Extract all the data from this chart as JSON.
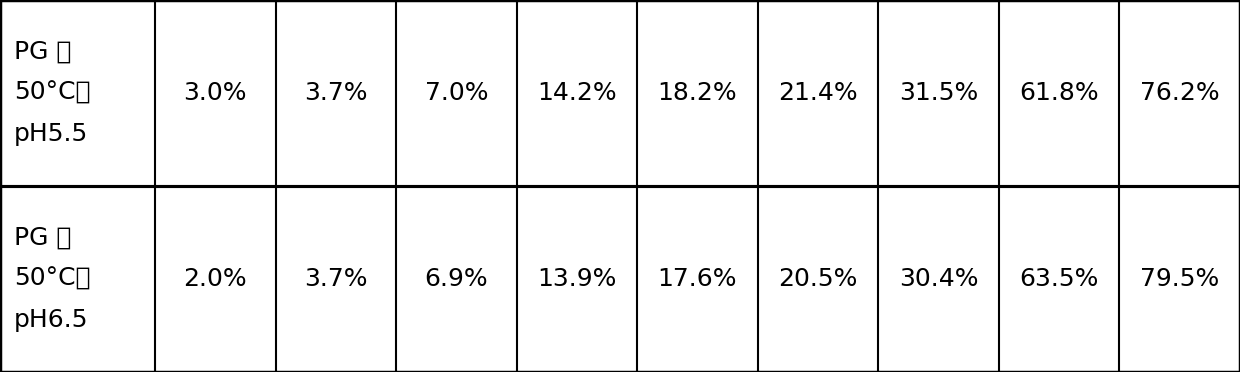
{
  "rows": [
    {
      "label_lines": [
        "PG 在",
        "50°C，",
        "pH5.5"
      ],
      "values": [
        "3.0%",
        "3.7%",
        "7.0%",
        "14.2%",
        "18.2%",
        "21.4%",
        "31.5%",
        "61.8%",
        "76.2%"
      ]
    },
    {
      "label_lines": [
        "PG 在",
        "50°C，",
        "pH6.5"
      ],
      "values": [
        "2.0%",
        "3.7%",
        "6.9%",
        "13.9%",
        "17.6%",
        "20.5%",
        "30.4%",
        "63.5%",
        "79.5%"
      ]
    }
  ],
  "background_color": "#ffffff",
  "border_color": "#000000",
  "text_color": "#000000",
  "font_size": 18,
  "label_font_size": 18,
  "fig_width": 12.4,
  "fig_height": 3.72,
  "dpi": 100
}
